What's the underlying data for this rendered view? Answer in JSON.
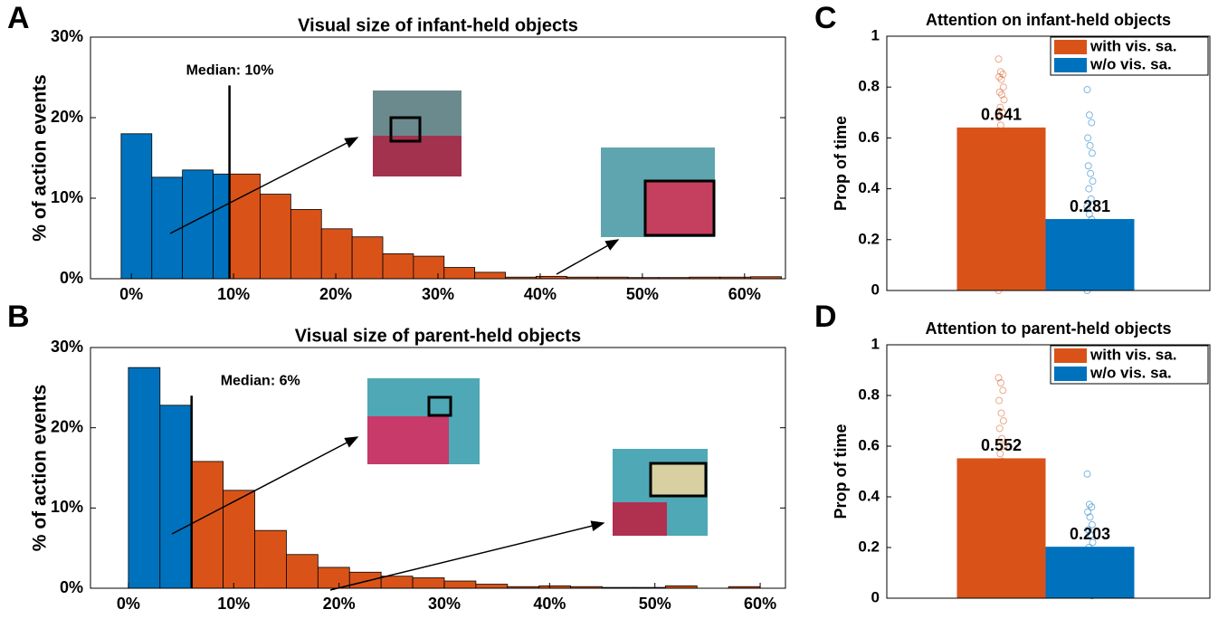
{
  "chart_data": [
    {
      "type": "histogram",
      "panel": "A",
      "title": "Visual size of infant-held objects",
      "ylabel": "% of action events",
      "bins": [
        -1,
        2,
        5,
        8,
        9.6,
        12.6,
        15.6,
        18.6,
        21.6,
        24.6,
        27.6,
        30.6,
        33.6,
        36.6,
        39.6,
        42.6,
        45.6,
        48.6,
        51.6,
        54.6,
        57.6,
        60.6,
        63.6
      ],
      "values": [
        18,
        12.6,
        13.5,
        13,
        13,
        10.5,
        8.6,
        6.2,
        5.2,
        3.1,
        2.8,
        1.4,
        0.8,
        0.2,
        0.3,
        0.2,
        0.2,
        0.15,
        0.15,
        0.2,
        0.2,
        0.25
      ],
      "median": {
        "value": 9.6,
        "label": "Median: 10%"
      },
      "color_below_median": "#0072bd",
      "color_above_median": "#d95319",
      "xlim": [
        -4,
        64
      ],
      "ylim": [
        0,
        30
      ],
      "xticks": [
        {
          "value": 0,
          "label": "0%"
        },
        {
          "value": 10,
          "label": "10%"
        },
        {
          "value": 20,
          "label": "20%"
        },
        {
          "value": 30,
          "label": "30%"
        },
        {
          "value": 40,
          "label": "40%"
        },
        {
          "value": 50,
          "label": "50%"
        },
        {
          "value": 60,
          "label": "60%"
        }
      ],
      "yticks": [
        {
          "value": 0,
          "label": "0%"
        },
        {
          "value": 10,
          "label": "10%"
        },
        {
          "value": 20,
          "label": "20%"
        },
        {
          "value": 30,
          "label": "30%"
        }
      ]
    },
    {
      "type": "histogram",
      "panel": "B",
      "title": "Visual size of parent-held objects",
      "ylabel": "% of action events",
      "bins": [
        0,
        3,
        6,
        9,
        12,
        15,
        18,
        21,
        24,
        27,
        30,
        33,
        36,
        39,
        42,
        45,
        48,
        51,
        54,
        57,
        60
      ],
      "values": [
        27.5,
        22.8,
        15.8,
        12.2,
        7.2,
        4.2,
        2.6,
        2.0,
        1.5,
        1.3,
        0.9,
        0.5,
        0.2,
        0.3,
        0.2,
        0.1,
        0.1,
        0.3,
        0,
        0.2
      ],
      "median": {
        "value": 6,
        "label": "Median: 6%"
      },
      "color_below_median": "#0072bd",
      "color_above_median": "#d95319",
      "xlim": [
        -3.6,
        62.4
      ],
      "ylim": [
        0,
        30
      ],
      "xticks": [
        {
          "value": 0,
          "label": "0%"
        },
        {
          "value": 10,
          "label": "10%"
        },
        {
          "value": 20,
          "label": "20%"
        },
        {
          "value": 30,
          "label": "30%"
        },
        {
          "value": 40,
          "label": "40%"
        },
        {
          "value": 50,
          "label": "50%"
        },
        {
          "value": 60,
          "label": "60%"
        }
      ],
      "yticks": [
        {
          "value": 0,
          "label": "0%"
        },
        {
          "value": 10,
          "label": "10%"
        },
        {
          "value": 20,
          "label": "20%"
        },
        {
          "value": 30,
          "label": "30%"
        }
      ]
    },
    {
      "type": "bar",
      "panel": "C",
      "title": "Attention on infant-held objects",
      "ylabel": "Prop of time",
      "series": [
        {
          "name": "with vis. sa.",
          "color": "#d95319",
          "values": [
            0.641
          ],
          "points": [
            0.91,
            0.86,
            0.85,
            0.84,
            0.83,
            0.8,
            0.78,
            0.77,
            0.75,
            0.72,
            0.7,
            0.68,
            0.65,
            0.61,
            0.58,
            0.55,
            0.52,
            0.5,
            0.47,
            0.45,
            0.42,
            0.4,
            0
          ]
        },
        {
          "name": "w/o vis. sa.",
          "color": "#0072bd",
          "values": [
            0.281
          ],
          "points": [
            0.79,
            0.69,
            0.66,
            0.6,
            0.57,
            0.54,
            0.49,
            0.46,
            0.43,
            0.4,
            0.36,
            0.33,
            0.3,
            0.28,
            0.26,
            0.23,
            0.2,
            0.18,
            0.16,
            0.12,
            0.09,
            0.05,
            0
          ]
        }
      ],
      "ylim": [
        0,
        1
      ],
      "yticks": [
        0,
        0.2,
        0.4,
        0.6,
        0.8,
        1
      ],
      "legend": "top-right"
    },
    {
      "type": "bar",
      "panel": "D",
      "title": "Attention to parent-held objects",
      "ylabel": "Prop of time",
      "series": [
        {
          "name": "with vis. sa.",
          "color": "#d95319",
          "values": [
            0.552
          ],
          "points": [
            0.87,
            0.85,
            0.82,
            0.78,
            0.73,
            0.7,
            0.67,
            0.63,
            0.6,
            0.57,
            0.54,
            0.51,
            0.48,
            0.44,
            0.41,
            0.36,
            0.33,
            0.29
          ]
        },
        {
          "name": "w/o vis. sa.",
          "color": "#0072bd",
          "values": [
            0.203
          ],
          "points": [
            0.49,
            0.37,
            0.36,
            0.34,
            0.32,
            0.29,
            0.27,
            0.25,
            0.22,
            0.2,
            0.18,
            0.15,
            0.12,
            0.1,
            0.07,
            0.04,
            0.01
          ]
        }
      ],
      "ylim": [
        0,
        1
      ],
      "yticks": [
        0,
        0.2,
        0.4,
        0.6,
        0.8,
        1
      ],
      "legend": "top-right"
    }
  ]
}
